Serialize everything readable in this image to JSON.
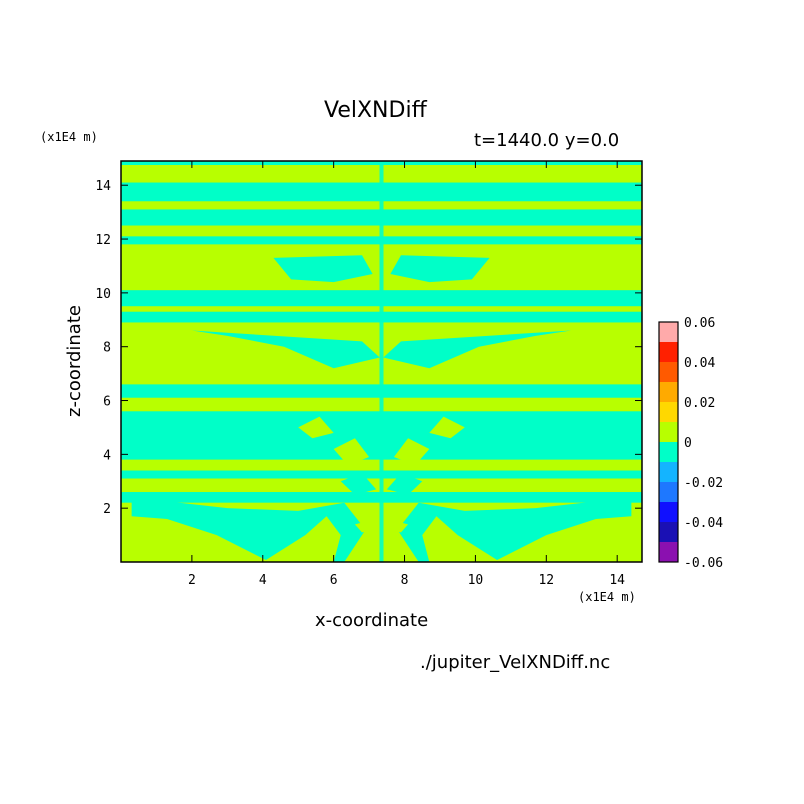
{
  "chart_data": {
    "type": "heatmap",
    "title": "VelXNDiff",
    "subtitle": "t=1440.0 y=0.0",
    "xlabel": "x-coordinate",
    "ylabel": "z-coordinate",
    "x_unit": "(x1E4 m)",
    "y_unit": "(x1E4 m)",
    "xlim": [
      0,
      14.7
    ],
    "ylim": [
      0,
      14.9
    ],
    "x_ticks": [
      2,
      4,
      6,
      8,
      10,
      12,
      14
    ],
    "y_ticks": [
      2,
      4,
      6,
      8,
      10,
      12,
      14
    ],
    "colorbar": {
      "levels": [
        -0.06,
        -0.05,
        -0.04,
        -0.03,
        -0.02,
        -0.01,
        0,
        0.01,
        0.02,
        0.03,
        0.04,
        0.05,
        0.06
      ],
      "tick_labels": [
        "-0.06",
        "-0.04",
        "-0.02",
        "0",
        "0.02",
        "0.04",
        "0.06"
      ],
      "colors": [
        "#8b10b0",
        "#1a10b4",
        "#1010ff",
        "#1e78ff",
        "#14b4ff",
        "#00ffc8",
        "#b8ff00",
        "#ffd800",
        "#ffaa00",
        "#ff5a00",
        "#ff2000",
        "#ffaaaa"
      ]
    },
    "dominant_colors": {
      "negative_small": "#00ffc8",
      "positive_small": "#b8ff00"
    },
    "bands": [
      {
        "z_from": 14.75,
        "z_to": 14.9,
        "value": "negative"
      },
      {
        "z_from": 14.1,
        "z_to": 14.75,
        "value": "positive"
      },
      {
        "z_from": 13.4,
        "z_to": 14.1,
        "value": "negative"
      },
      {
        "z_from": 13.1,
        "z_to": 13.4,
        "value": "positive"
      },
      {
        "z_from": 12.5,
        "z_to": 13.1,
        "value": "negative"
      },
      {
        "z_from": 12.1,
        "z_to": 12.5,
        "value": "positive"
      },
      {
        "z_from": 11.8,
        "z_to": 12.1,
        "value": "negative"
      },
      {
        "z_from": 10.1,
        "z_to": 11.8,
        "value": "positive"
      },
      {
        "z_from": 9.5,
        "z_to": 10.1,
        "value": "negative"
      },
      {
        "z_from": 9.3,
        "z_to": 9.5,
        "value": "positive"
      },
      {
        "z_from": 8.9,
        "z_to": 9.3,
        "value": "negative"
      },
      {
        "z_from": 6.6,
        "z_to": 8.9,
        "value": "positive"
      },
      {
        "z_from": 6.1,
        "z_to": 6.6,
        "value": "negative"
      },
      {
        "z_from": 5.6,
        "z_to": 6.1,
        "value": "positive"
      },
      {
        "z_from": 3.8,
        "z_to": 5.6,
        "value": "negative"
      },
      {
        "z_from": 3.4,
        "z_to": 3.8,
        "value": "positive"
      },
      {
        "z_from": 3.1,
        "z_to": 3.4,
        "value": "negative"
      },
      {
        "z_from": 2.6,
        "z_to": 3.1,
        "value": "positive"
      },
      {
        "z_from": 2.2,
        "z_to": 2.6,
        "value": "negative"
      },
      {
        "z_from": 0,
        "z_to": 2.2,
        "value": "positive"
      }
    ],
    "symmetry_axis_x": 7.35,
    "source_label": "./jupiter_VelXNDiff.nc"
  }
}
